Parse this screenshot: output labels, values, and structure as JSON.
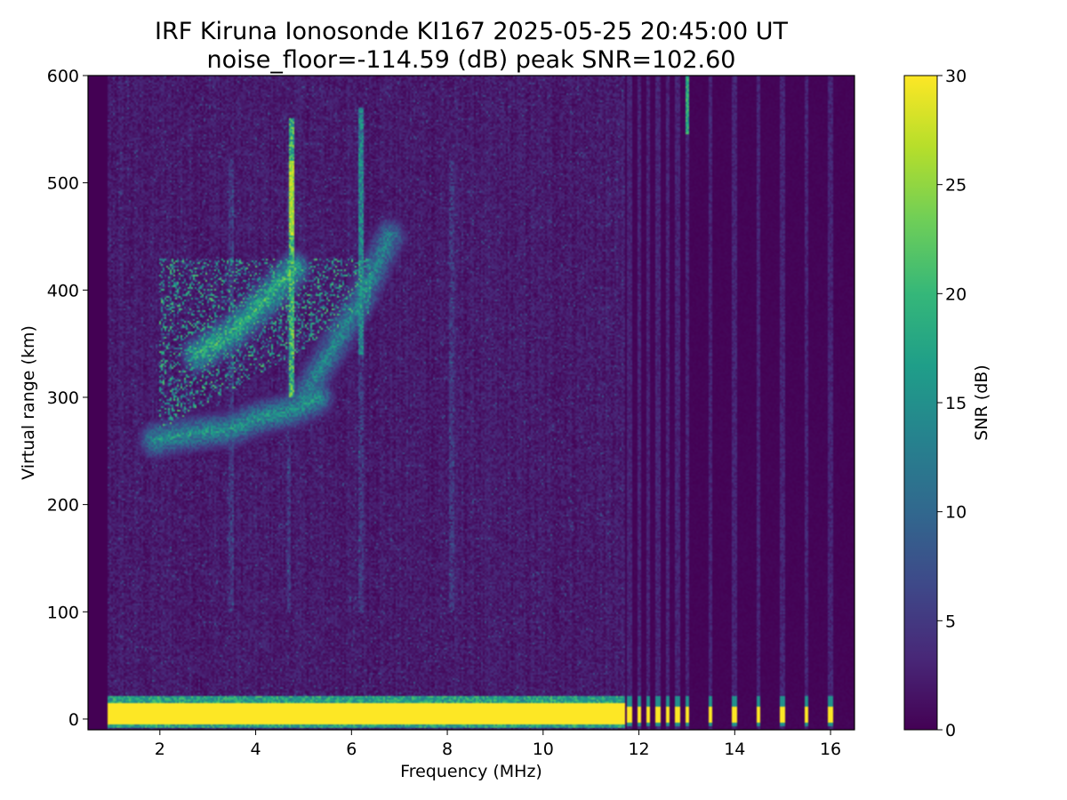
{
  "chart_data": {
    "type": "heatmap",
    "title": "IRF Kiruna Ionosonde KI167 2025-05-25 20:45:00  UT",
    "subtitle": "noise_floor=-114.59 (dB) peak SNR=102.60",
    "xlabel": "Frequency (MHz)",
    "ylabel": "Virtual range (km)",
    "xlim": [
      0.5,
      16.5
    ],
    "ylim": [
      -10,
      600
    ],
    "x_ticks": [
      2,
      4,
      6,
      8,
      10,
      12,
      14,
      16
    ],
    "y_ticks": [
      0,
      100,
      200,
      300,
      400,
      500,
      600
    ],
    "frequency_coverage_mhz": [
      0.9,
      16.5
    ],
    "colorbar": {
      "label": "SNR (dB)",
      "range": [
        0,
        30
      ],
      "ticks": [
        0,
        5,
        10,
        15,
        20,
        25,
        30
      ],
      "colormap": "viridis",
      "colors": [
        "#440154",
        "#482878",
        "#3e4989",
        "#31688e",
        "#26828e",
        "#1f9e89",
        "#35b779",
        "#6ece58",
        "#b5de2b",
        "#fde725"
      ]
    },
    "ground_echo": {
      "range_km": [
        -5,
        15
      ],
      "freq_mhz": [
        0.9,
        11.7
      ],
      "snr_db": 30
    },
    "sparse_channels_mhz": [
      11.8,
      12.0,
      12.2,
      12.4,
      12.6,
      12.8,
      13.0,
      13.5,
      14.0,
      14.5,
      15.0,
      15.5,
      16.0
    ],
    "strong_line": {
      "freq_mhz": 13.0,
      "range_km": [
        545,
        600
      ],
      "snr_db": 20
    },
    "traces": [
      {
        "description": "F-region trace",
        "freq_mhz": [
          1.9,
          2.5,
          3.0,
          3.5,
          4.0,
          4.5,
          5.0,
          5.3
        ],
        "range_km": [
          260,
          265,
          268,
          270,
          280,
          285,
          292,
          300
        ],
        "snr_db": 18
      },
      {
        "description": "second hop trace",
        "freq_mhz": [
          5.0,
          5.4,
          5.8,
          6.2,
          6.5,
          6.8
        ],
        "range_km": [
          300,
          330,
          360,
          390,
          420,
          450
        ],
        "snr_db": 16
      },
      {
        "description": "spread echoes",
        "freq_mhz": [
          2.8,
          3.5,
          4.2,
          4.8
        ],
        "range_km": [
          340,
          360,
          390,
          420
        ],
        "snr_db": 22
      }
    ],
    "vertical_streaks_mhz": [
      3.5,
      4.7,
      6.2,
      8.1
    ],
    "peak_echo": {
      "freq_mhz": 4.75,
      "range_km": [
        450,
        520
      ],
      "snr_db": 28
    }
  }
}
